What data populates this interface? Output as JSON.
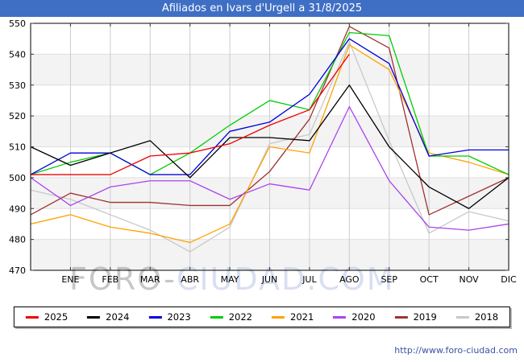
{
  "title": "Afiliados en Ivars d'Urgell a 31/8/2025",
  "title_bar_color": "#3f6fc4",
  "footer_url": "http://www.foro-ciudad.com",
  "watermark": {
    "part1": "FORO-",
    "part2": "CIUDAD.COM",
    "color1": "#9a9a9a",
    "color2": "#b9c6e8"
  },
  "chart_data": {
    "type": "line",
    "title": "Afiliados en Ivars d'Urgell a 31/8/2025",
    "categories": [
      "ENE",
      "FEB",
      "MAR",
      "ABR",
      "MAY",
      "JUN",
      "JUL",
      "AGO",
      "SEP",
      "OCT",
      "NOV",
      "DIC"
    ],
    "values_note": "index 0 of each values array is the point drawn on the left axis edge; indices 1-12 fall on the ENE-DIC gridlines",
    "y_axis": {
      "min": 470,
      "max": 550,
      "step": 10,
      "ticks": [
        550,
        540,
        530,
        520,
        510,
        500,
        490,
        480,
        470
      ]
    },
    "grid": {
      "vertical": true,
      "alternating_bands": true
    },
    "legend_position": "bottom",
    "series": [
      {
        "name": "2025",
        "color": "#ee0000",
        "values": [
          501,
          501,
          501,
          507,
          508,
          511,
          517,
          522,
          540,
          null,
          null,
          null,
          null
        ]
      },
      {
        "name": "2024",
        "color": "#000000",
        "values": [
          510,
          504,
          508,
          512,
          500,
          513,
          513,
          512,
          530,
          510,
          497,
          490,
          500
        ]
      },
      {
        "name": "2023",
        "color": "#0000dd",
        "values": [
          501,
          508,
          508,
          501,
          501,
          515,
          518,
          527,
          545,
          537,
          507,
          509,
          509
        ]
      },
      {
        "name": "2022",
        "color": "#00cc00",
        "values": [
          501,
          505,
          508,
          501,
          508,
          517,
          525,
          522,
          547,
          546,
          507,
          507,
          501
        ]
      },
      {
        "name": "2021",
        "color": "#ffa200",
        "values": [
          485,
          488,
          484,
          482,
          479,
          485,
          510,
          508,
          543,
          535,
          508,
          505,
          501
        ]
      },
      {
        "name": "2020",
        "color": "#aa44ee",
        "values": [
          500,
          491,
          497,
          499,
          499,
          493,
          498,
          496,
          523,
          499,
          484,
          483,
          485
        ]
      },
      {
        "name": "2019",
        "color": "#a03232",
        "values": [
          488,
          495,
          492,
          492,
          491,
          491,
          502,
          519,
          549,
          542,
          488,
          494,
          500
        ]
      },
      {
        "name": "2018",
        "color": "#c8c8c8",
        "values": [
          496,
          493,
          488,
          483,
          476,
          484,
          511,
          514,
          544,
          512,
          482,
          489,
          486
        ]
      }
    ]
  }
}
